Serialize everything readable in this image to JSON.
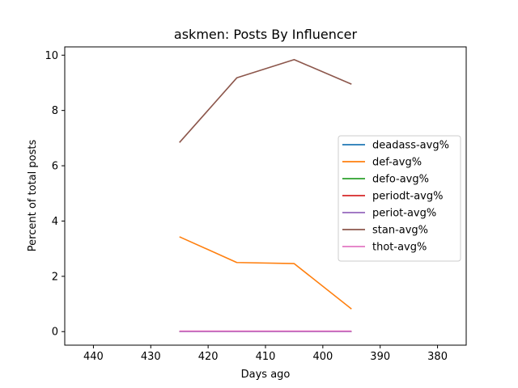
{
  "chart_data": {
    "type": "line",
    "title": "askmen: Posts By Influencer",
    "xlabel": "Days ago",
    "ylabel": "Percent of total posts",
    "xlim": [
      445,
      375
    ],
    "ylim": [
      -0.49,
      10.3
    ],
    "x_inverted": true,
    "xticks": [
      440,
      430,
      420,
      410,
      400,
      390,
      380
    ],
    "yticks": [
      0,
      2,
      4,
      6,
      8,
      10
    ],
    "grid": false,
    "legend_position": "center-right",
    "x": [
      425,
      415,
      405,
      395
    ],
    "series": [
      {
        "name": "deadass-avg%",
        "color": "#1f77b4",
        "values": [
          0,
          0,
          0,
          0
        ]
      },
      {
        "name": "def-avg%",
        "color": "#ff7f0e",
        "values": [
          3.43,
          2.5,
          2.46,
          0.82
        ]
      },
      {
        "name": "defo-avg%",
        "color": "#2ca02c",
        "values": [
          0,
          0,
          0,
          0
        ]
      },
      {
        "name": "periodt-avg%",
        "color": "#d62728",
        "values": [
          0,
          0,
          0,
          0
        ]
      },
      {
        "name": "periot-avg%",
        "color": "#9467bd",
        "values": [
          0,
          0,
          0,
          0
        ]
      },
      {
        "name": "stan-avg%",
        "color": "#8c564b",
        "values": [
          6.84,
          9.18,
          9.84,
          8.95
        ]
      },
      {
        "name": "thot-avg%",
        "color": "#e377c2",
        "values": [
          0.02,
          0.02,
          0.02,
          0.02
        ]
      }
    ]
  }
}
